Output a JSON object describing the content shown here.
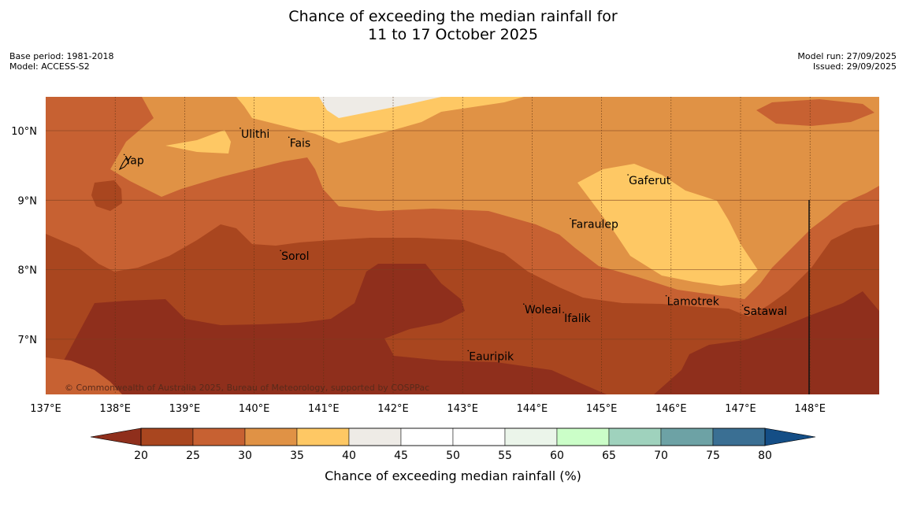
{
  "header": {
    "title_line1": "Chance of exceeding the median rainfall for",
    "title_line2": "11 to 17 October 2025",
    "base_period": "Base period: 1981-2018",
    "model": "Model: ACCESS-S2",
    "model_run": "Model run: 27/09/2025",
    "issued": "Issued: 29/09/2025"
  },
  "map": {
    "lon_range": [
      137,
      149
    ],
    "lat_range": [
      6.2,
      10.5
    ],
    "lon_ticks": [
      "137°E",
      "138°E",
      "139°E",
      "140°E",
      "141°E",
      "142°E",
      "143°E",
      "144°E",
      "145°E",
      "146°E",
      "147°E",
      "148°E"
    ],
    "lat_ticks": [
      "10°N",
      "9°N",
      "8°N",
      "7°N"
    ],
    "places": [
      {
        "name": "Ulithi",
        "lon": 139.8,
        "lat": 9.9
      },
      {
        "name": "Fais",
        "lon": 140.5,
        "lat": 9.77
      },
      {
        "name": "Yap",
        "lon": 138.13,
        "lat": 9.52
      },
      {
        "name": "Gaferut",
        "lon": 145.38,
        "lat": 9.23
      },
      {
        "name": "Faraulep",
        "lon": 144.55,
        "lat": 8.6
      },
      {
        "name": "Sorol",
        "lon": 140.38,
        "lat": 8.14
      },
      {
        "name": "Lamotrek",
        "lon": 145.93,
        "lat": 7.49
      },
      {
        "name": "Woleai",
        "lon": 143.88,
        "lat": 7.37
      },
      {
        "name": "Ifalik",
        "lon": 144.45,
        "lat": 7.25
      },
      {
        "name": "Satawal",
        "lon": 147.03,
        "lat": 7.35
      },
      {
        "name": "Eauripik",
        "lon": 143.08,
        "lat": 6.7
      }
    ],
    "copyright": "© Commonwealth of Australia 2025, Bureau of Meteorology, supported by COSPPac"
  },
  "colorbar": {
    "label": "Chance of exceeding median rainfall (%)",
    "ticks": [
      "20",
      "25",
      "30",
      "35",
      "40",
      "45",
      "50",
      "55",
      "60",
      "65",
      "70",
      "75",
      "80"
    ],
    "colors": {
      "lt20": "#8f2f1c",
      "20-25": "#a9461f",
      "25-30": "#c76132",
      "30-35": "#e09245",
      "35-40": "#fec864",
      "40-45": "#eeebe6",
      "45-50": "#ffffff",
      "50-55": "#ffffff",
      "55-60": "#ebf5ea",
      "60-65": "#cbfec8",
      "65-70": "#9fd2bd",
      "70-75": "#6da2a5",
      "75-80": "#3a6f93",
      "gt80": "#144e86"
    }
  }
}
